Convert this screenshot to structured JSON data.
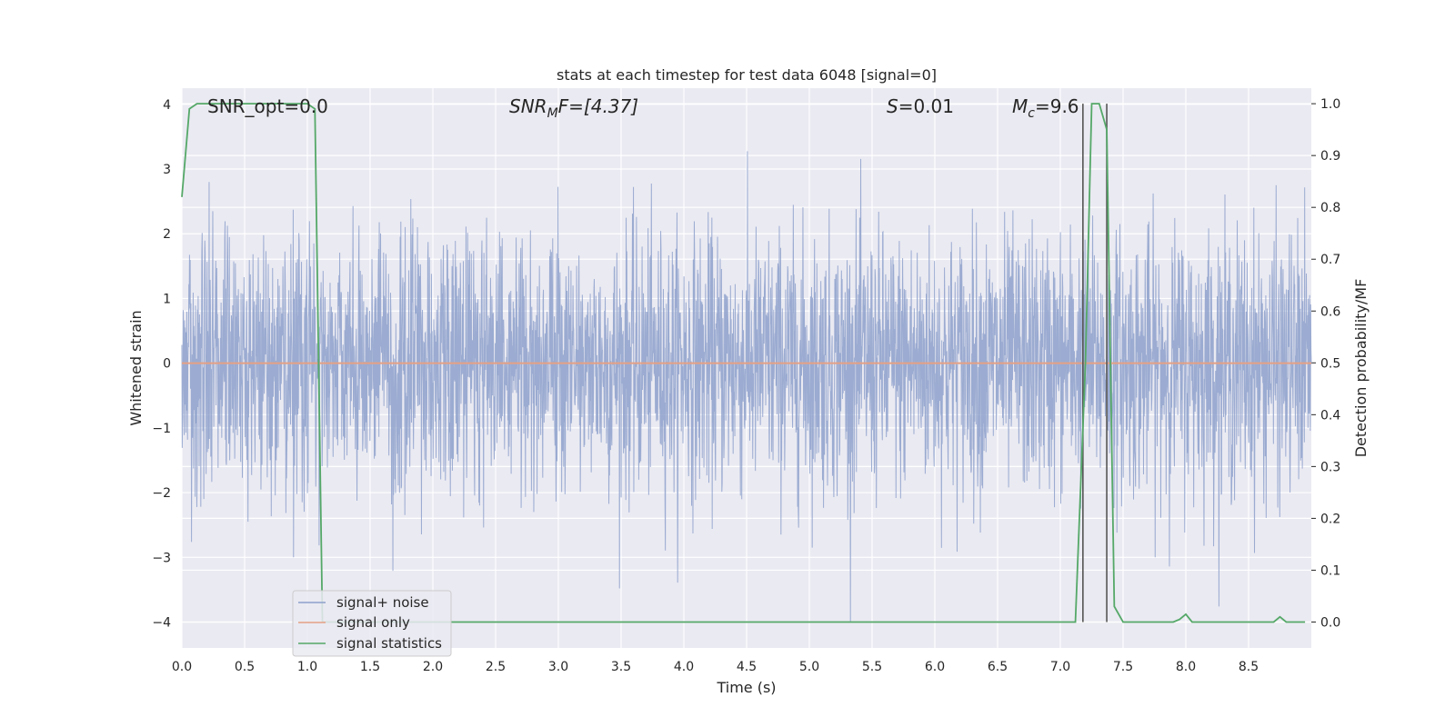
{
  "chart_data": {
    "type": "line",
    "title": "stats at each timestep for test data 6048 [signal=0]",
    "xlabel": "Time (s)",
    "ylabel_left": "Whitened strain",
    "ylabel_right": "Detection probability/MF",
    "xlim": [
      0.0,
      9.0
    ],
    "ylim_left": [
      -4.4,
      4.25
    ],
    "ylim_right": [
      -0.05,
      1.03
    ],
    "x_ticks": [
      "0.0",
      "0.5",
      "1.0",
      "1.5",
      "2.0",
      "2.5",
      "3.0",
      "3.5",
      "4.0",
      "4.5",
      "5.0",
      "5.5",
      "6.0",
      "6.5",
      "7.0",
      "7.5",
      "8.0",
      "8.5"
    ],
    "y_ticks_left": [
      "4",
      "3",
      "2",
      "1",
      "0",
      "−1",
      "−2",
      "−3",
      "−4"
    ],
    "y_ticks_right": [
      "1.0",
      "0.9",
      "0.8",
      "0.7",
      "0.6",
      "0.5",
      "0.4",
      "0.3",
      "0.2",
      "0.1",
      "0.0"
    ],
    "grid": true,
    "legend_position": "bottom-left",
    "annotations": {
      "snr_opt": "SNR_opt=0.0",
      "snr_mf_name": "SNR",
      "snr_mf_sub": "M",
      "snr_mf_tail": "F=[4.37]",
      "s_name": "S",
      "s_tail": "=0.01",
      "mc_name": "M",
      "mc_sub": "c",
      "mc_tail": "=9.6"
    },
    "vertical_markers": [
      7.18,
      7.37
    ],
    "series": [
      {
        "name": "signal+ noise",
        "color": "#8da0cb",
        "axis": "left",
        "description_values": "whitened noise samples, |y| mostly below 2.5, spikes up to 3.9 and down to -4.0"
      },
      {
        "name": "signal only",
        "color": "#e5a084",
        "axis": "left",
        "x": [
          0.0,
          9.0
        ],
        "y": [
          0.0,
          0.0
        ]
      },
      {
        "name": "signal statistics",
        "color": "#55a868",
        "axis": "right",
        "x": [
          0.0,
          0.06,
          0.12,
          0.5,
          1.0,
          1.06,
          1.12,
          1.15,
          2.0,
          3.0,
          4.0,
          5.0,
          6.0,
          7.0,
          7.12,
          7.2,
          7.25,
          7.31,
          7.37,
          7.43,
          7.5,
          7.9,
          7.95,
          8.0,
          8.05,
          8.1,
          8.7,
          8.75,
          8.8,
          8.95
        ],
        "y": [
          0.82,
          0.99,
          1.0,
          1.0,
          1.0,
          0.99,
          0.0,
          0.0,
          0.0,
          0.0,
          0.0,
          0.0,
          0.0,
          0.0,
          0.0,
          0.5,
          1.0,
          1.0,
          0.95,
          0.03,
          0.0,
          0.0,
          0.005,
          0.015,
          0.0,
          0.0,
          0.0,
          0.01,
          0.0,
          0.0
        ]
      }
    ]
  }
}
